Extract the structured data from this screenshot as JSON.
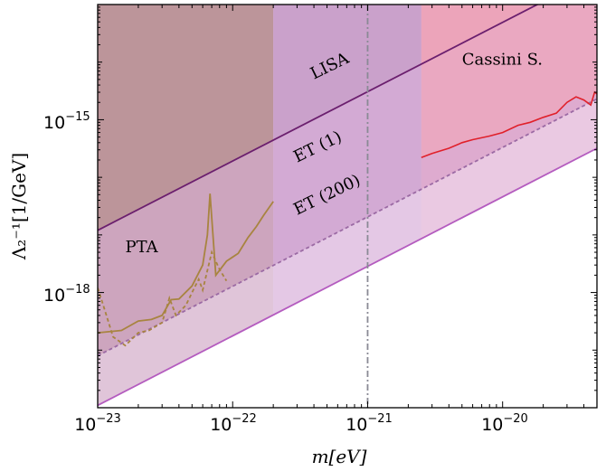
{
  "chart_data": {
    "type": "line",
    "xlabel": "m[eV]",
    "ylabel": "Λ₂⁻¹[1/GeV]",
    "x_scale": "log",
    "y_scale": "log",
    "xlim": [
      1e-23,
      5e-20
    ],
    "ylim": [
      1e-20,
      1e-13
    ],
    "x_ticks": [
      {
        "base": "10",
        "exp": "−23",
        "value": 1e-23
      },
      {
        "base": "10",
        "exp": "−22",
        "value": 1e-22
      },
      {
        "base": "10",
        "exp": "−21",
        "value": 1e-21
      },
      {
        "base": "10",
        "exp": "−20",
        "value": 1e-20
      }
    ],
    "y_ticks": [
      {
        "base": "10",
        "exp": "−15",
        "value": 1e-15
      },
      {
        "base": "10",
        "exp": "−18",
        "value": 1e-18
      }
    ],
    "regions": [
      {
        "name": "PTA region",
        "color": "#b48a8c",
        "x_range": [
          1e-23,
          2e-22
        ]
      },
      {
        "name": "LISA region",
        "color": "#c498c5",
        "x_range": [
          2e-22,
          2.5e-21
        ]
      },
      {
        "name": "Cassini region",
        "color": "#e099b6",
        "x_range": [
          2.5e-21,
          5e-20
        ]
      }
    ],
    "series": [
      {
        "name": "LISA",
        "style": "solid",
        "color": "#6b1f6e",
        "x": [
          1e-23,
          5e-20
        ],
        "y": [
          1.2e-17,
          3.4e-13
        ]
      },
      {
        "name": "ET (1)",
        "style": "dashed",
        "color": "#9b6aa4",
        "x": [
          1e-23,
          5e-20
        ],
        "y": [
          8e-20,
          2.3e-15
        ]
      },
      {
        "name": "ET (200)",
        "style": "solid",
        "color": "#b45cbf",
        "x": [
          1e-23,
          5e-20
        ],
        "y": [
          1.1e-20,
          3.2e-16
        ]
      },
      {
        "name": "PTA",
        "style": "solid",
        "color": "#a88440",
        "x": [
          1e-23,
          1.5e-23,
          2e-23,
          2.5e-23,
          3e-23,
          3.5e-23,
          4e-23,
          5e-23,
          6e-23,
          6.5e-23,
          6.8e-23,
          7.5e-23,
          9e-23,
          1.1e-22,
          1.3e-22,
          1.5e-22,
          1.7e-22,
          2e-22
        ],
        "y": [
          2e-19,
          2.2e-19,
          3.2e-19,
          3.4e-19,
          4e-19,
          7.5e-19,
          7.7e-19,
          1.3e-18,
          3e-18,
          1e-17,
          5.2e-17,
          2e-18,
          3.5e-18,
          4.8e-18,
          9e-18,
          1.4e-17,
          2.2e-17,
          3.8e-17
        ]
      },
      {
        "name": "PTA (dashed)",
        "style": "dashed",
        "color": "#a88440",
        "x": [
          1e-23,
          1.1e-23,
          1.3e-23,
          1.6e-23,
          2e-23,
          2.4e-23,
          3e-23,
          3.4e-23,
          3.8e-23,
          4.5e-23,
          5.2e-23,
          5.6e-23,
          6e-23,
          7e-23,
          8e-23,
          9e-23
        ],
        "y": [
          1.2e-18,
          6e-19,
          1.7e-19,
          1.2e-19,
          2e-19,
          2.2e-19,
          3e-19,
          8e-19,
          4e-19,
          6e-19,
          1.2e-18,
          1.7e-18,
          1.1e-18,
          5e-18,
          2.5e-18,
          1.6e-18
        ]
      },
      {
        "name": "Cassini S.",
        "style": "solid",
        "color": "#e0202a",
        "x": [
          2.5e-21,
          3e-21,
          4e-21,
          5e-21,
          6e-21,
          8e-21,
          1e-20,
          1.3e-20,
          1.6e-20,
          2e-20,
          2.5e-20,
          3e-20,
          3.5e-20,
          4e-20,
          4.5e-20,
          4.8e-20,
          5e-20
        ],
        "y": [
          2.2e-16,
          2.6e-16,
          3.2e-16,
          4e-16,
          4.5e-16,
          5.2e-16,
          6e-16,
          8e-16,
          9e-16,
          1.1e-15,
          1.3e-15,
          2e-15,
          2.5e-15,
          2.2e-15,
          1.8e-15,
          3e-15,
          2.8e-15
        ]
      }
    ],
    "vline": {
      "x": 1e-21,
      "style": "dashdot",
      "color": "#8a8a95"
    },
    "labels": [
      {
        "text": "LISA",
        "x": 4e-22,
        "y": 5e-15,
        "rot": -26
      },
      {
        "text": "Cassini S.",
        "x": 5e-21,
        "y": 9e-15,
        "rot": 0
      },
      {
        "text": "ET (1)",
        "x": 3e-22,
        "y": 1.8e-16,
        "rot": -26
      },
      {
        "text": "ET (200)",
        "x": 3e-22,
        "y": 2.2e-17,
        "rot": -26
      },
      {
        "text": "PTA",
        "x": 1.6e-23,
        "y": 5e-18,
        "rot": 0
      }
    ]
  }
}
